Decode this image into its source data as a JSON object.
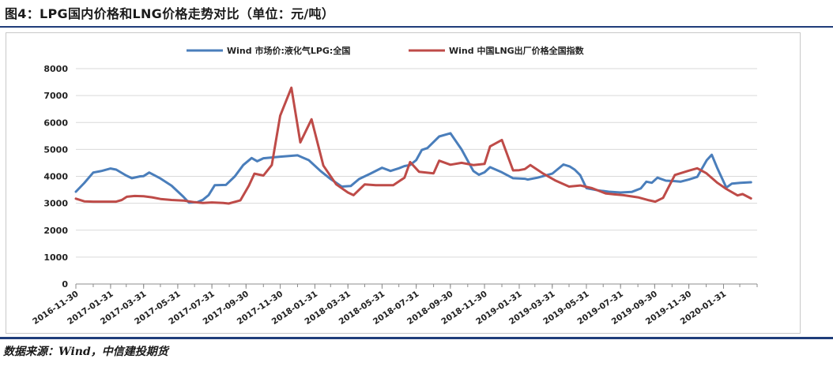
{
  "figure": {
    "title": "图4：LPG国内价格和LNG价格走势对比（单位：元/吨）",
    "source": "数据来源：Wind，中信建投期货"
  },
  "chart_data": {
    "type": "line",
    "ylim": [
      0,
      8000
    ],
    "yticks": [
      0,
      1000,
      2000,
      3000,
      4000,
      5000,
      6000,
      7000,
      8000
    ],
    "xlim": [
      "2016-11-30",
      "2020-03-31"
    ],
    "xticks": [
      "2016-11-30",
      "2017-01-31",
      "2017-03-31",
      "2017-05-31",
      "2017-07-31",
      "2017-09-30",
      "2017-11-30",
      "2018-01-31",
      "2018-03-31",
      "2018-05-31",
      "2018-07-31",
      "2018-09-30",
      "2018-11-30",
      "2019-01-31",
      "2019-03-31",
      "2019-05-31",
      "2019-07-31",
      "2019-09-30",
      "2019-11-30",
      "2020-01-31"
    ],
    "grid": true,
    "legend_position": "top",
    "series": [
      {
        "name": "Wind 市场价:液化气LPG:全国",
        "color": "#4a7ebb",
        "points": [
          [
            "2016-11-30",
            3430
          ],
          [
            "2016-12-15",
            3750
          ],
          [
            "2016-12-31",
            4140
          ],
          [
            "2017-01-15",
            4200
          ],
          [
            "2017-01-31",
            4290
          ],
          [
            "2017-02-10",
            4250
          ],
          [
            "2017-02-28",
            4030
          ],
          [
            "2017-03-10",
            3930
          ],
          [
            "2017-03-25",
            4000
          ],
          [
            "2017-03-31",
            4010
          ],
          [
            "2017-04-10",
            4140
          ],
          [
            "2017-04-30",
            3920
          ],
          [
            "2017-05-20",
            3650
          ],
          [
            "2017-06-10",
            3240
          ],
          [
            "2017-06-20",
            3020
          ],
          [
            "2017-07-05",
            3040
          ],
          [
            "2017-07-15",
            3130
          ],
          [
            "2017-07-25",
            3300
          ],
          [
            "2017-08-05",
            3670
          ],
          [
            "2017-08-25",
            3680
          ],
          [
            "2017-09-10",
            4000
          ],
          [
            "2017-09-25",
            4420
          ],
          [
            "2017-10-10",
            4680
          ],
          [
            "2017-10-20",
            4560
          ],
          [
            "2017-10-31",
            4670
          ],
          [
            "2017-11-30",
            4730
          ],
          [
            "2017-12-31",
            4780
          ],
          [
            "2018-01-20",
            4600
          ],
          [
            "2018-02-10",
            4200
          ],
          [
            "2018-02-28",
            3900
          ],
          [
            "2018-03-20",
            3620
          ],
          [
            "2018-04-05",
            3640
          ],
          [
            "2018-04-20",
            3900
          ],
          [
            "2018-05-10",
            4100
          ],
          [
            "2018-05-31",
            4320
          ],
          [
            "2018-06-15",
            4200
          ],
          [
            "2018-06-30",
            4300
          ],
          [
            "2018-07-10",
            4380
          ],
          [
            "2018-07-20",
            4420
          ],
          [
            "2018-07-31",
            4600
          ],
          [
            "2018-08-10",
            4980
          ],
          [
            "2018-08-20",
            5050
          ],
          [
            "2018-09-10",
            5480
          ],
          [
            "2018-09-30",
            5600
          ],
          [
            "2018-10-20",
            5000
          ],
          [
            "2018-11-10",
            4200
          ],
          [
            "2018-11-20",
            4060
          ],
          [
            "2018-11-30",
            4150
          ],
          [
            "2018-12-10",
            4340
          ],
          [
            "2018-12-31",
            4150
          ],
          [
            "2019-01-20",
            3930
          ],
          [
            "2019-01-31",
            3920
          ],
          [
            "2019-02-10",
            3910
          ],
          [
            "2019-02-15",
            3880
          ],
          [
            "2019-03-05",
            3950
          ],
          [
            "2019-03-31",
            4100
          ],
          [
            "2019-04-20",
            4440
          ],
          [
            "2019-05-01",
            4370
          ],
          [
            "2019-05-10",
            4250
          ],
          [
            "2019-05-20",
            4040
          ],
          [
            "2019-05-31",
            3560
          ],
          [
            "2019-06-20",
            3480
          ],
          [
            "2019-07-10",
            3430
          ],
          [
            "2019-07-31",
            3400
          ],
          [
            "2019-08-20",
            3420
          ],
          [
            "2019-09-05",
            3550
          ],
          [
            "2019-09-15",
            3800
          ],
          [
            "2019-09-25",
            3760
          ],
          [
            "2019-10-05",
            3950
          ],
          [
            "2019-10-20",
            3840
          ],
          [
            "2019-11-05",
            3820
          ],
          [
            "2019-11-15",
            3800
          ],
          [
            "2019-11-30",
            3880
          ],
          [
            "2019-12-15",
            3980
          ],
          [
            "2020-01-01",
            4600
          ],
          [
            "2020-01-10",
            4800
          ],
          [
            "2020-01-20",
            4300
          ],
          [
            "2020-02-05",
            3580
          ],
          [
            "2020-02-15",
            3730
          ],
          [
            "2020-03-01",
            3760
          ],
          [
            "2020-03-20",
            3780
          ]
        ]
      },
      {
        "name": "Wind 中国LNG出厂价格全国指数",
        "color": "#be4b48",
        "points": [
          [
            "2016-11-30",
            3170
          ],
          [
            "2016-12-15",
            3070
          ],
          [
            "2016-12-31",
            3060
          ],
          [
            "2017-01-31",
            3060
          ],
          [
            "2017-02-10",
            3060
          ],
          [
            "2017-02-20",
            3120
          ],
          [
            "2017-03-01",
            3240
          ],
          [
            "2017-03-15",
            3270
          ],
          [
            "2017-03-31",
            3260
          ],
          [
            "2017-04-15",
            3220
          ],
          [
            "2017-04-30",
            3160
          ],
          [
            "2017-05-20",
            3120
          ],
          [
            "2017-06-10",
            3100
          ],
          [
            "2017-06-30",
            3040
          ],
          [
            "2017-07-15",
            3010
          ],
          [
            "2017-07-31",
            3030
          ],
          [
            "2017-08-20",
            3010
          ],
          [
            "2017-08-30",
            2990
          ],
          [
            "2017-09-20",
            3110
          ],
          [
            "2017-10-05",
            3650
          ],
          [
            "2017-10-15",
            4100
          ],
          [
            "2017-10-31",
            4030
          ],
          [
            "2017-11-15",
            4420
          ],
          [
            "2017-11-30",
            6250
          ],
          [
            "2017-12-20",
            7290
          ],
          [
            "2018-01-05",
            5260
          ],
          [
            "2018-01-25",
            6120
          ],
          [
            "2018-02-15",
            4400
          ],
          [
            "2018-03-10",
            3700
          ],
          [
            "2018-03-31",
            3400
          ],
          [
            "2018-04-10",
            3300
          ],
          [
            "2018-04-30",
            3700
          ],
          [
            "2018-05-20",
            3670
          ],
          [
            "2018-06-20",
            3670
          ],
          [
            "2018-07-10",
            3950
          ],
          [
            "2018-07-20",
            4530
          ],
          [
            "2018-08-05",
            4170
          ],
          [
            "2018-08-31",
            4110
          ],
          [
            "2018-09-10",
            4580
          ],
          [
            "2018-09-30",
            4430
          ],
          [
            "2018-10-20",
            4500
          ],
          [
            "2018-11-10",
            4420
          ],
          [
            "2018-11-30",
            4460
          ],
          [
            "2018-12-10",
            5110
          ],
          [
            "2018-12-31",
            5350
          ],
          [
            "2019-01-20",
            4220
          ],
          [
            "2019-01-31",
            4230
          ],
          [
            "2019-02-10",
            4270
          ],
          [
            "2019-02-20",
            4420
          ],
          [
            "2019-03-15",
            4100
          ],
          [
            "2019-04-05",
            3850
          ],
          [
            "2019-04-30",
            3620
          ],
          [
            "2019-05-20",
            3660
          ],
          [
            "2019-06-10",
            3560
          ],
          [
            "2019-07-05",
            3360
          ],
          [
            "2019-07-20",
            3330
          ],
          [
            "2019-08-05",
            3300
          ],
          [
            "2019-08-31",
            3220
          ],
          [
            "2019-09-20",
            3110
          ],
          [
            "2019-10-01",
            3060
          ],
          [
            "2019-10-15",
            3200
          ],
          [
            "2019-11-05",
            4050
          ],
          [
            "2019-11-30",
            4210
          ],
          [
            "2019-12-15",
            4300
          ],
          [
            "2019-12-31",
            4120
          ],
          [
            "2020-01-20",
            3760
          ],
          [
            "2020-02-05",
            3530
          ],
          [
            "2020-02-25",
            3290
          ],
          [
            "2020-03-05",
            3340
          ],
          [
            "2020-03-20",
            3180
          ]
        ]
      }
    ]
  }
}
